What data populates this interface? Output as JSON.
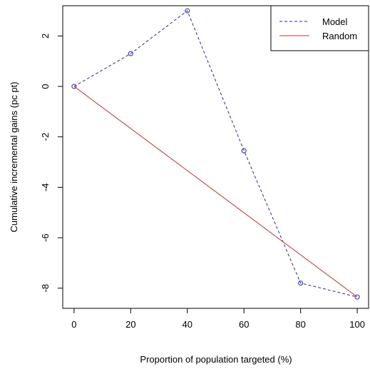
{
  "chart_data": {
    "type": "line",
    "xlabel": "Proportion of population targeted (%)",
    "ylabel": "Cumulative incremental gains (pc pt)",
    "xlim": [
      -4,
      104
    ],
    "ylim": [
      -8.8,
      3.2
    ],
    "x_ticks": [
      0,
      20,
      40,
      60,
      80,
      100
    ],
    "y_ticks": [
      -8,
      -6,
      -4,
      -2,
      0,
      2
    ],
    "legend_position": "top-right",
    "grid": false,
    "series": [
      {
        "name": "Model",
        "color": "#2a2aa0",
        "line_style": "dashed",
        "marker": "open-circle",
        "points": [
          {
            "x": 0,
            "y": 0
          },
          {
            "x": 20,
            "y": 1.3
          },
          {
            "x": 40,
            "y": 3.0
          },
          {
            "x": 60,
            "y": -2.55
          },
          {
            "x": 80,
            "y": -7.8
          },
          {
            "x": 100,
            "y": -8.35
          }
        ]
      },
      {
        "name": "Random",
        "color": "#c0302a",
        "line_style": "solid",
        "marker": "none",
        "points": [
          {
            "x": 0,
            "y": 0
          },
          {
            "x": 100,
            "y": -8.35
          }
        ]
      }
    ]
  }
}
